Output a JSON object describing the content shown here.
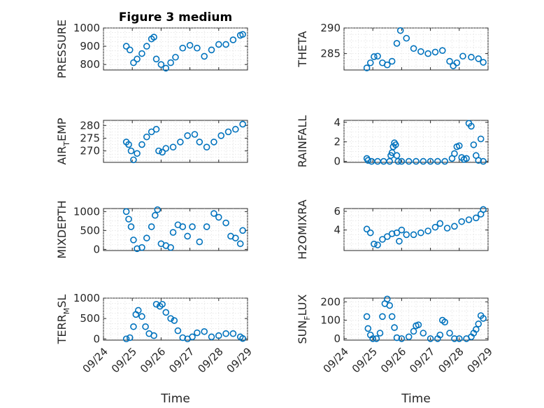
{
  "figure": {
    "title": "Figure 3 medium",
    "marker_color": "#0072BD"
  },
  "chart_data": [
    {
      "type": "scatter",
      "marker": "o",
      "grid": true,
      "ylabel": "PRESSURE",
      "xlim": [
        "09/24",
        "09/29"
      ],
      "ylim": [
        770,
        1000
      ],
      "yticks": [
        "800",
        "900",
        "1000"
      ],
      "xticks": [
        "09/24",
        "09/25",
        "09/26",
        "09/27",
        "09/28",
        "09/29"
      ],
      "x": [
        "09/24 19:00",
        "09/24 22:00",
        "09/25 01:00",
        "09/25 04:00",
        "09/25 08:00",
        "09/25 12:00",
        "09/25 16:00",
        "09/25 18:00",
        "09/25 20:00",
        "09/26 00:00",
        "09/26 04:00",
        "09/26 08:00",
        "09/26 12:00",
        "09/26 18:00",
        "09/27 00:00",
        "09/27 06:00",
        "09/27 12:00",
        "09/27 18:00",
        "09/28 00:00",
        "09/28 06:00",
        "09/28 12:00",
        "09/28 18:00",
        "09/28 20:00"
      ],
      "y": [
        900,
        880,
        810,
        830,
        860,
        900,
        940,
        950,
        830,
        800,
        780,
        810,
        840,
        890,
        905,
        890,
        845,
        880,
        910,
        910,
        935,
        960,
        965
      ]
    },
    {
      "type": "scatter",
      "marker": "o",
      "grid": true,
      "ylabel": "THETA",
      "xlim": [
        "09/24",
        "09/29"
      ],
      "ylim": [
        281.8,
        290
      ],
      "yticks": [
        "285",
        "290"
      ],
      "xticks": [
        "09/24",
        "09/25",
        "09/26",
        "09/27",
        "09/28",
        "09/29"
      ],
      "x": [
        "09/24 19:00",
        "09/24 22:00",
        "09/25 01:00",
        "09/25 04:00",
        "09/25 08:00",
        "09/25 12:00",
        "09/25 16:00",
        "09/25 20:00",
        "09/25 23:00",
        "09/26 04:00",
        "09/26 10:00",
        "09/26 16:00",
        "09/26 22:00",
        "09/27 04:00",
        "09/27 10:00",
        "09/27 16:00",
        "09/27 19:00",
        "09/27 22:00",
        "09/28 03:00",
        "09/28 10:00",
        "09/28 16:00",
        "09/28 20:00"
      ],
      "y": [
        282.2,
        283.2,
        284.4,
        284.5,
        283.2,
        282.8,
        283.5,
        287.0,
        289.5,
        288.0,
        286.0,
        285.4,
        285.0,
        285.3,
        285.6,
        283.5,
        282.6,
        283.2,
        284.5,
        284.3,
        284.0,
        283.3
      ]
    },
    {
      "type": "scatter",
      "marker": "o",
      "grid": true,
      "ylabel": "AIR_TEMP",
      "xlim": [
        "09/24",
        "09/29"
      ],
      "ylim": [
        265.5,
        282
      ],
      "yticks": [
        "270",
        "275",
        "280"
      ],
      "xticks": [
        "09/24",
        "09/25",
        "09/26",
        "09/27",
        "09/28",
        "09/29"
      ],
      "x": [
        "09/24 19:00",
        "09/24 21:00",
        "09/24 23:00",
        "09/25 01:00",
        "09/25 04:00",
        "09/25 08:00",
        "09/25 12:00",
        "09/25 16:00",
        "09/25 20:00",
        "09/25 22:00",
        "09/26 01:00",
        "09/26 04:00",
        "09/26 10:00",
        "09/26 16:00",
        "09/26 22:00",
        "09/27 04:00",
        "09/27 08:00",
        "09/27 14:00",
        "09/27 20:00",
        "09/28 02:00",
        "09/28 08:00",
        "09/28 14:00",
        "09/28 20:00"
      ],
      "y": [
        273.5,
        272.5,
        270.0,
        266.5,
        269.0,
        272.5,
        275.5,
        277.5,
        278.5,
        270.0,
        269.5,
        271.0,
        271.5,
        273.5,
        276.0,
        276.5,
        273.5,
        271.5,
        273.5,
        276.0,
        277.5,
        278.5,
        280.5
      ]
    },
    {
      "type": "scatter",
      "marker": "o",
      "grid": true,
      "ylabel": "RAINFALL",
      "xlim": [
        "09/24",
        "09/29"
      ],
      "ylim": [
        -0.1,
        4.2
      ],
      "yticks": [
        "0",
        "2",
        "4"
      ],
      "xticks": [
        "09/24",
        "09/25",
        "09/26",
        "09/27",
        "09/28",
        "09/29"
      ],
      "x": [
        "09/24 19:00",
        "09/24 20:00",
        "09/24 23:00",
        "09/25 04:00",
        "09/25 09:00",
        "09/25 14:00",
        "09/25 15:00",
        "09/25 16:00",
        "09/25 17:00",
        "09/25 18:00",
        "09/25 19:00",
        "09/25 20:00",
        "09/25 21:00",
        "09/26 00:00",
        "09/26 06:00",
        "09/26 12:00",
        "09/26 18:00",
        "09/27 00:00",
        "09/27 06:00",
        "09/27 12:00",
        "09/27 18:00",
        "09/27 20:00",
        "09/27 22:00",
        "09/28 00:00",
        "09/28 02:00",
        "09/28 04:00",
        "09/28 06:00",
        "09/28 08:00",
        "09/28 10:00",
        "09/28 12:00",
        "09/28 14:00",
        "09/28 16:00",
        "09/28 18:00",
        "09/28 20:00"
      ],
      "y": [
        0.3,
        0.1,
        0,
        0,
        0,
        0,
        0.6,
        0.9,
        1.5,
        1.9,
        1.7,
        0.6,
        0,
        0,
        0,
        0,
        0,
        0,
        0,
        0,
        0.3,
        0.8,
        1.5,
        1.6,
        0.4,
        0.2,
        0.3,
        3.9,
        3.6,
        1.7,
        0.6,
        0.1,
        2.3,
        0
      ]
    },
    {
      "type": "scatter",
      "marker": "o",
      "grid": true,
      "ylabel": "MIXDEPTH",
      "xlim": [
        "09/24",
        "09/29"
      ],
      "ylim": [
        -30,
        1080
      ],
      "yticks": [
        "0",
        "500",
        "1000"
      ],
      "xticks": [
        "09/24",
        "09/25",
        "09/26",
        "09/27",
        "09/28",
        "09/29"
      ],
      "x": [
        "09/24 19:00",
        "09/24 21:00",
        "09/24 23:00",
        "09/25 01:00",
        "09/25 04:00",
        "09/25 08:00",
        "09/25 12:00",
        "09/25 16:00",
        "09/25 19:00",
        "09/25 21:00",
        "09/26 00:00",
        "09/26 04:00",
        "09/26 08:00",
        "09/26 10:00",
        "09/26 14:00",
        "09/26 18:00",
        "09/26 22:00",
        "09/27 02:00",
        "09/27 08:00",
        "09/27 14:00",
        "09/27 20:00",
        "09/28 00:00",
        "09/28 06:00",
        "09/28 10:00",
        "09/28 14:00",
        "09/28 18:00",
        "09/28 20:00"
      ],
      "y": [
        1000,
        800,
        600,
        250,
        20,
        50,
        300,
        600,
        900,
        1050,
        150,
        100,
        50,
        450,
        650,
        600,
        350,
        600,
        200,
        600,
        950,
        850,
        700,
        350,
        300,
        150,
        500
      ]
    },
    {
      "type": "scatter",
      "marker": "o",
      "grid": true,
      "ylabel": "H2OMIXRA",
      "xlim": [
        "09/24",
        "09/29"
      ],
      "ylim": [
        1.8,
        6.3
      ],
      "yticks": [
        "4",
        "6"
      ],
      "xticks": [
        "09/24",
        "09/25",
        "09/26",
        "09/27",
        "09/28",
        "09/29"
      ],
      "x": [
        "09/24 19:00",
        "09/24 22:00",
        "09/25 01:00",
        "09/25 04:00",
        "09/25 08:00",
        "09/25 12:00",
        "09/25 16:00",
        "09/25 20:00",
        "09/25 22:00",
        "09/26 00:00",
        "09/26 04:00",
        "09/26 10:00",
        "09/26 16:00",
        "09/26 22:00",
        "09/27 04:00",
        "09/27 08:00",
        "09/27 14:00",
        "09/27 20:00",
        "09/28 02:00",
        "09/28 08:00",
        "09/28 14:00",
        "09/28 18:00",
        "09/28 20:00"
      ],
      "y": [
        4.1,
        3.7,
        2.5,
        2.4,
        3.0,
        3.3,
        3.6,
        3.7,
        2.8,
        4.0,
        3.5,
        3.5,
        3.7,
        3.9,
        4.3,
        4.7,
        4.2,
        4.4,
        4.9,
        5.1,
        5.3,
        5.7,
        6.2
      ]
    },
    {
      "type": "scatter",
      "marker": "o",
      "grid": true,
      "ylabel": "TERR_MSL",
      "xlim": [
        "09/24",
        "09/29"
      ],
      "ylim": [
        -30,
        1000
      ],
      "yticks": [
        "0",
        "500",
        "1000"
      ],
      "xticks": [
        "09/24",
        "09/25",
        "09/26",
        "09/27",
        "09/28",
        "09/29"
      ],
      "x": [
        "09/24 19:00",
        "09/24 22:00",
        "09/25 01:00",
        "09/25 03:00",
        "09/25 05:00",
        "09/25 08:00",
        "09/25 11:00",
        "09/25 14:00",
        "09/25 18:00",
        "09/25 20:00",
        "09/25 23:00",
        "09/26 01:00",
        "09/26 04:00",
        "09/26 08:00",
        "09/26 11:00",
        "09/26 14:00",
        "09/26 18:00",
        "09/26 22:00",
        "09/27 02:00",
        "09/27 06:00",
        "09/27 12:00",
        "09/27 18:00",
        "09/28 00:00",
        "09/28 06:00",
        "09/28 12:00",
        "09/28 18:00",
        "09/28 20:00"
      ],
      "y": [
        0,
        30,
        300,
        600,
        700,
        550,
        300,
        130,
        80,
        850,
        800,
        850,
        650,
        500,
        450,
        200,
        30,
        0,
        50,
        150,
        180,
        50,
        80,
        130,
        130,
        50,
        10
      ]
    },
    {
      "type": "scatter",
      "marker": "o",
      "grid": true,
      "ylabel": "SUN_FLUX",
      "xlim": [
        "09/24",
        "09/29"
      ],
      "ylim": [
        -8,
        220
      ],
      "yticks": [
        "0",
        "100",
        "200"
      ],
      "xticks": [
        "09/24",
        "09/25",
        "09/26",
        "09/27",
        "09/28",
        "09/29"
      ],
      "x": [
        "09/24 19:00",
        "09/24 20:00",
        "09/24 22:00",
        "09/25 00:00",
        "09/25 03:00",
        "09/25 06:00",
        "09/25 08:00",
        "09/25 10:00",
        "09/25 12:00",
        "09/25 14:00",
        "09/25 16:00",
        "09/25 18:00",
        "09/25 20:00",
        "09/26 00:00",
        "09/26 06:00",
        "09/26 10:00",
        "09/26 12:00",
        "09/26 14:00",
        "09/26 18:00",
        "09/27 00:00",
        "09/27 06:00",
        "09/27 08:00",
        "09/27 10:00",
        "09/27 12:00",
        "09/27 16:00",
        "09/27 20:00",
        "09/28 00:00",
        "09/28 06:00",
        "09/28 10:00",
        "09/28 12:00",
        "09/28 14:00",
        "09/28 16:00",
        "09/28 18:00",
        "09/28 20:00"
      ],
      "y": [
        120,
        55,
        20,
        0,
        0,
        30,
        120,
        190,
        215,
        180,
        120,
        60,
        5,
        0,
        10,
        40,
        70,
        75,
        30,
        0,
        0,
        20,
        100,
        90,
        30,
        0,
        0,
        0,
        10,
        30,
        50,
        80,
        125,
        110
      ]
    }
  ]
}
